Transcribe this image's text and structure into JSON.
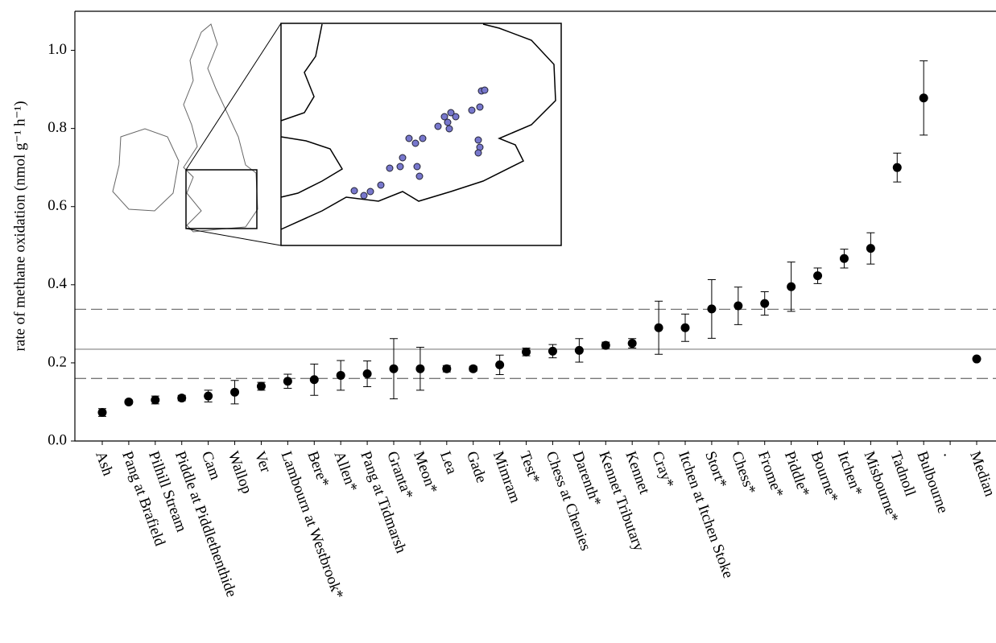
{
  "chart_data": {
    "type": "errorbar",
    "y_label": "rate of methane oxidation (nmol g⁻¹ h⁻¹)",
    "categories": [
      "Ash",
      "Pang at Brafield",
      "Pilhill Stream",
      "Piddle at Piddlethenthide",
      "Cam",
      "Wallop",
      "Ver",
      "Lambourn at Westbrook*",
      "Bere*",
      "Allen*",
      "Pang at Tidmarsh",
      "Granta*",
      "Meon*",
      "Lea",
      "Gade",
      "Mimram",
      "Test*",
      "Chess at Chenies",
      "Darenth*",
      "Kennet Tributary",
      "Kennet",
      "Cray*",
      "Itchen at Itchen Stoke",
      "Stort*",
      "Chess*",
      "Frome*",
      "Piddle*",
      "Bourne*",
      "Itchen*",
      "Misbourne*",
      "Tadnoll",
      "Bulbourne",
      ".",
      "Median"
    ],
    "values": [
      0.073,
      0.1,
      0.105,
      0.11,
      0.115,
      0.125,
      0.14,
      0.153,
      0.157,
      0.168,
      0.172,
      0.185,
      0.185,
      0.185,
      0.185,
      0.195,
      0.228,
      0.23,
      0.232,
      0.245,
      0.25,
      0.29,
      0.29,
      0.338,
      0.346,
      0.352,
      0.395,
      0.423,
      0.467,
      0.493,
      0.7,
      0.878,
      null,
      0.21
    ],
    "errors": [
      0.01,
      0.005,
      0.01,
      0.007,
      0.015,
      0.03,
      0.01,
      0.018,
      0.04,
      0.038,
      0.033,
      0.077,
      0.055,
      0.008,
      0.006,
      0.025,
      0.01,
      0.017,
      0.03,
      0.008,
      0.012,
      0.068,
      0.035,
      0.075,
      0.048,
      0.03,
      0.063,
      0.02,
      0.024,
      0.04,
      0.037,
      0.095,
      null,
      null
    ],
    "color": "#000000",
    "reference_lines": [
      {
        "value": 0.235,
        "style": "solid",
        "color": "#999999"
      },
      {
        "value": 0.337,
        "style": "dashed",
        "color": "#777777"
      },
      {
        "value": 0.16,
        "style": "dashed",
        "color": "#777777"
      }
    ],
    "ylim": [
      0,
      1.1
    ],
    "yticks": [
      {
        "value": 0,
        "label": "0.0"
      },
      0.2,
      0.4,
      0.6,
      0.8,
      {
        "value": 1,
        "label": "1.0"
      }
    ]
  }
}
